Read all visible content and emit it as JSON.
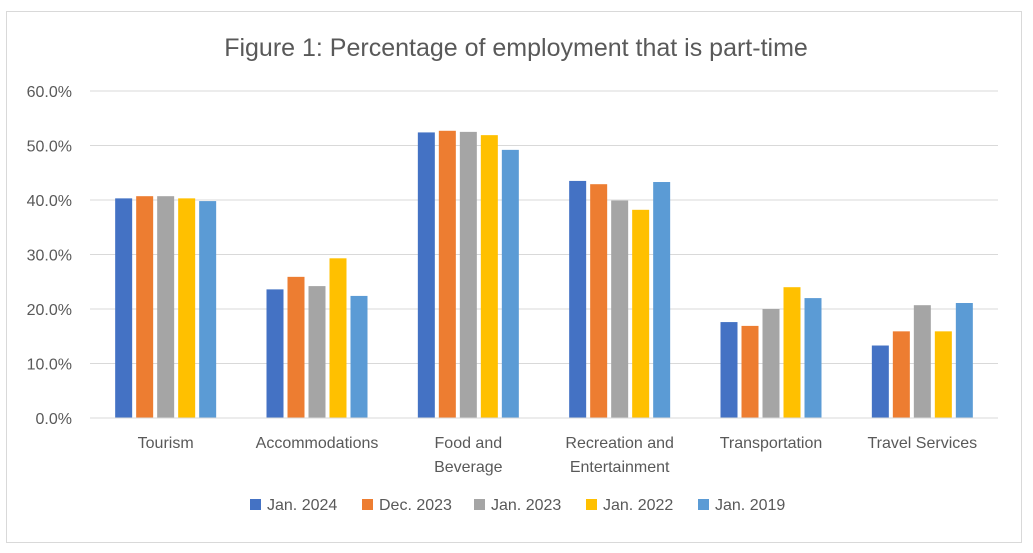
{
  "chart_data": {
    "type": "bar",
    "title": "Figure 1: Percentage of employment that is part-time",
    "xlabel": "",
    "ylabel": "",
    "ylim": [
      0,
      60
    ],
    "yticks": [
      "0.0%",
      "10.0%",
      "20.0%",
      "30.0%",
      "40.0%",
      "50.0%",
      "60.0%"
    ],
    "grid": true,
    "legend_position": "bottom",
    "categories": [
      [
        "Tourism"
      ],
      [
        "Accommodations"
      ],
      [
        "Food and",
        "Beverage"
      ],
      [
        "Recreation and",
        "Entertainment"
      ],
      [
        "Transportation"
      ],
      [
        "Travel Services"
      ]
    ],
    "series": [
      {
        "name": "Jan. 2024",
        "color": "#4472c4",
        "values": [
          40.3,
          23.6,
          52.4,
          43.5,
          17.6,
          13.3
        ]
      },
      {
        "name": "Dec. 2023",
        "color": "#ed7d31",
        "values": [
          40.7,
          25.9,
          52.7,
          42.9,
          16.9,
          15.9
        ]
      },
      {
        "name": "Jan. 2023",
        "color": "#a5a5a5",
        "values": [
          40.7,
          24.2,
          52.5,
          39.9,
          20.0,
          20.7
        ]
      },
      {
        "name": "Jan. 2022",
        "color": "#ffc000",
        "values": [
          40.3,
          29.3,
          51.9,
          38.2,
          24.0,
          15.9
        ]
      },
      {
        "name": "Jan. 2019",
        "color": "#5b9bd5",
        "values": [
          39.8,
          22.4,
          49.2,
          43.3,
          22.0,
          21.1
        ]
      }
    ]
  }
}
